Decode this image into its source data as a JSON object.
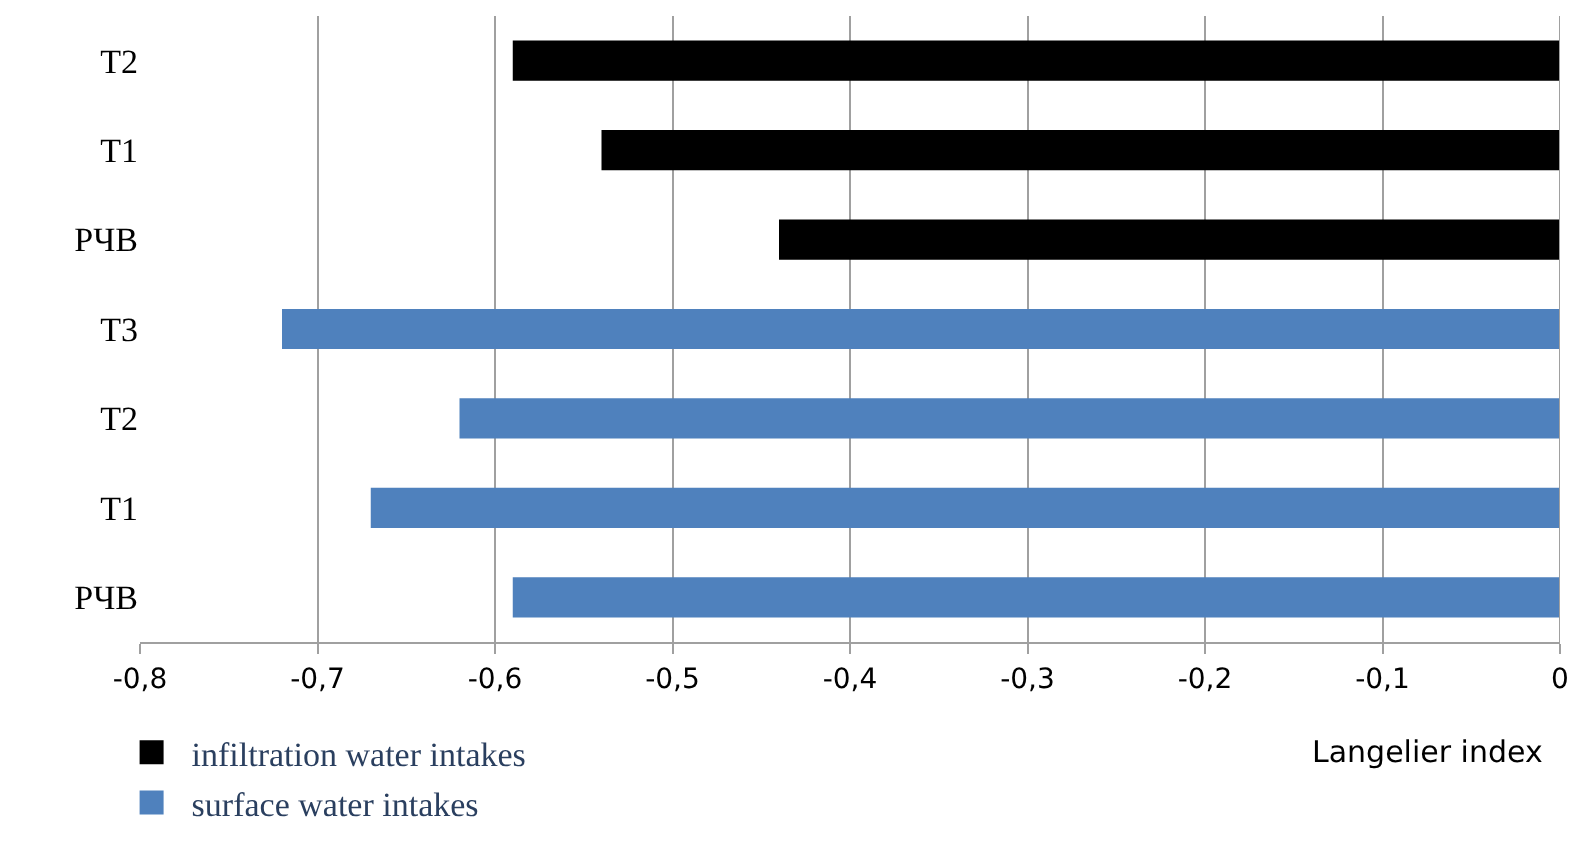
{
  "chart_data": {
    "type": "bar",
    "orientation": "horizontal",
    "xlabel": "Langelier index",
    "categories": [
      "T2",
      "T1",
      "РЧВ",
      "T3",
      "T2",
      "T1",
      "РЧВ"
    ],
    "series": [
      {
        "name": "infiltration water intakes",
        "color": "#000000",
        "values": [
          -0.59,
          -0.54,
          -0.44,
          null,
          null,
          null,
          null
        ]
      },
      {
        "name": "surface water intakes",
        "color": "#4f81bd",
        "values": [
          null,
          null,
          null,
          -0.72,
          -0.62,
          -0.67,
          -0.59
        ]
      }
    ],
    "xlim": [
      -0.8,
      0
    ],
    "xticks": [
      {
        "value": -0.8,
        "label": "-0,8"
      },
      {
        "value": -0.7,
        "label": "-0,7"
      },
      {
        "value": -0.6,
        "label": "-0,6"
      },
      {
        "value": -0.5,
        "label": "-0,5"
      },
      {
        "value": -0.4,
        "label": "-0,4"
      },
      {
        "value": -0.3,
        "label": "-0,3"
      },
      {
        "value": -0.2,
        "label": "-0,2"
      },
      {
        "value": -0.1,
        "label": "-0,1"
      },
      {
        "value": 0,
        "label": "0"
      }
    ],
    "grid": "x",
    "legend": "bottom left"
  }
}
